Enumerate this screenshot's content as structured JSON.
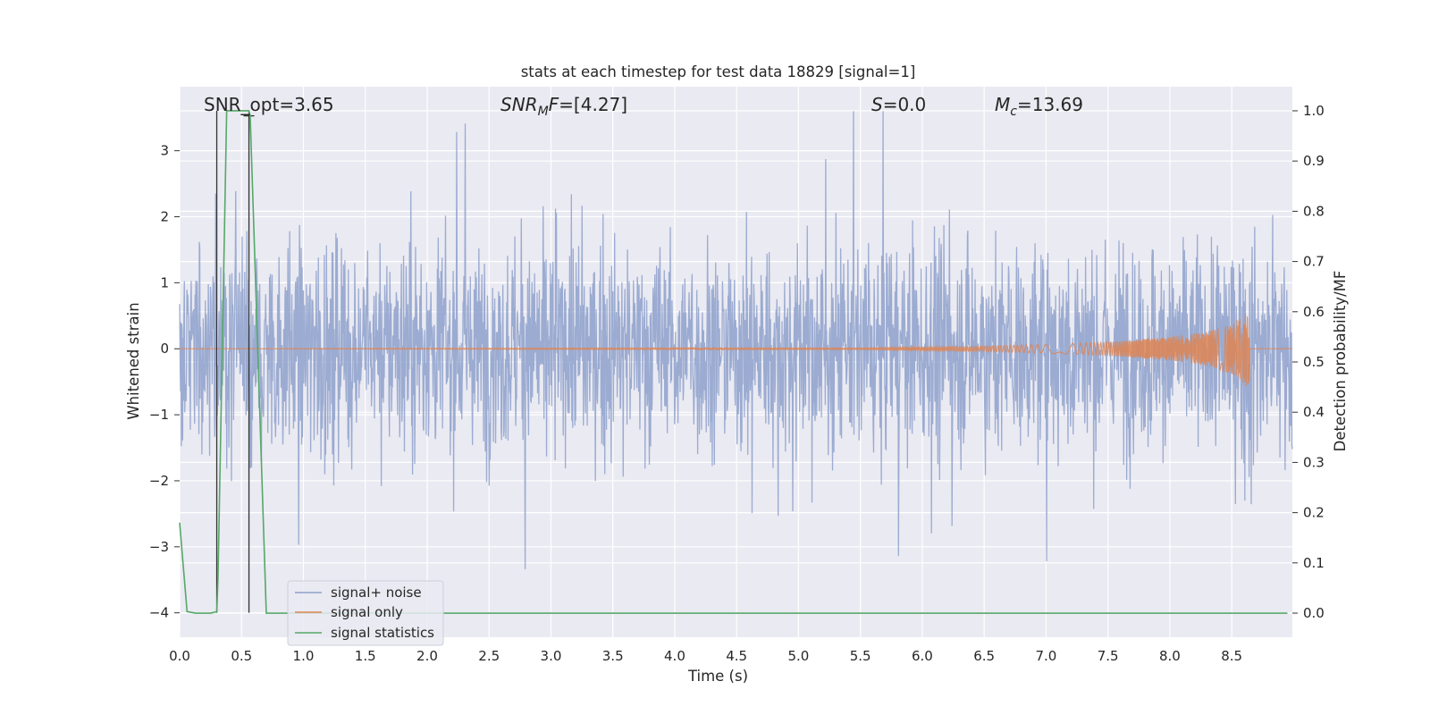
{
  "chart_data": {
    "type": "line",
    "title": "stats at each timestep for test data 18829 [signal=1]",
    "xlabel": "Time (s)",
    "ylabel": "Whitened strain",
    "ylabel_right": "Detection probability/MF",
    "xlim": [
      0.0,
      8.99
    ],
    "ylim": [
      -4.37,
      3.97
    ],
    "ylim_right": [
      -0.048,
      1.048
    ],
    "x_ticks": [
      "0.0",
      "0.5",
      "1.0",
      "1.5",
      "2.0",
      "2.5",
      "3.0",
      "3.5",
      "4.0",
      "4.5",
      "5.0",
      "5.5",
      "6.0",
      "6.5",
      "7.0",
      "7.5",
      "8.0",
      "8.5"
    ],
    "y_ticks": [
      "−4",
      "−3",
      "−2",
      "−1",
      "0",
      "1",
      "2",
      "3"
    ],
    "y_ticks_right": [
      "0.0",
      "0.1",
      "0.2",
      "0.3",
      "0.4",
      "0.5",
      "0.6",
      "0.7",
      "0.8",
      "0.9",
      "1.0"
    ],
    "grid": true,
    "annotations": {
      "snr_opt": "SNR_opt=3.65",
      "snr_mf": "=[4.27]",
      "s_val": "=0.0",
      "mc_val": "=13.69"
    },
    "legend": {
      "placement": "lower-left",
      "entries": [
        "signal+ noise",
        "signal only",
        "signal statistics"
      ]
    },
    "series": [
      {
        "name": "signal+ noise",
        "axis": "left",
        "color": "#8da0cb",
        "description": "whitened noise with signal, approx. +/-1.3 band with spikes to +/-3.5 over 0-8.99 s"
      },
      {
        "name": "signal only",
        "axis": "left",
        "color": "#dd8452",
        "x": [
          0.0,
          5.5,
          6.5,
          7.0,
          7.5,
          8.0,
          8.3,
          8.5,
          8.6,
          8.64,
          8.65,
          8.99
        ],
        "amplitude": [
          0.0,
          0.01,
          0.04,
          0.07,
          0.1,
          0.18,
          0.26,
          0.38,
          0.52,
          0.6,
          0.0,
          0.0
        ]
      },
      {
        "name": "signal statistics",
        "axis": "right",
        "color": "#55a868",
        "x": [
          0.0,
          0.06,
          0.13,
          0.25,
          0.3,
          0.31,
          0.38,
          0.56,
          0.57,
          0.7,
          0.75,
          1.0,
          8.95
        ],
        "values": [
          0.18,
          0.003,
          0.0,
          0.0,
          0.003,
          0.07,
          1.0,
          1.0,
          0.99,
          0.0,
          0.0,
          0.0,
          0.0
        ]
      }
    ],
    "markers": {
      "color": "#333333",
      "x": [
        0.3,
        0.56
      ]
    },
    "colors": {
      "background": "#eaeaf2",
      "grid": "#ffffff",
      "text": "#262626"
    }
  }
}
